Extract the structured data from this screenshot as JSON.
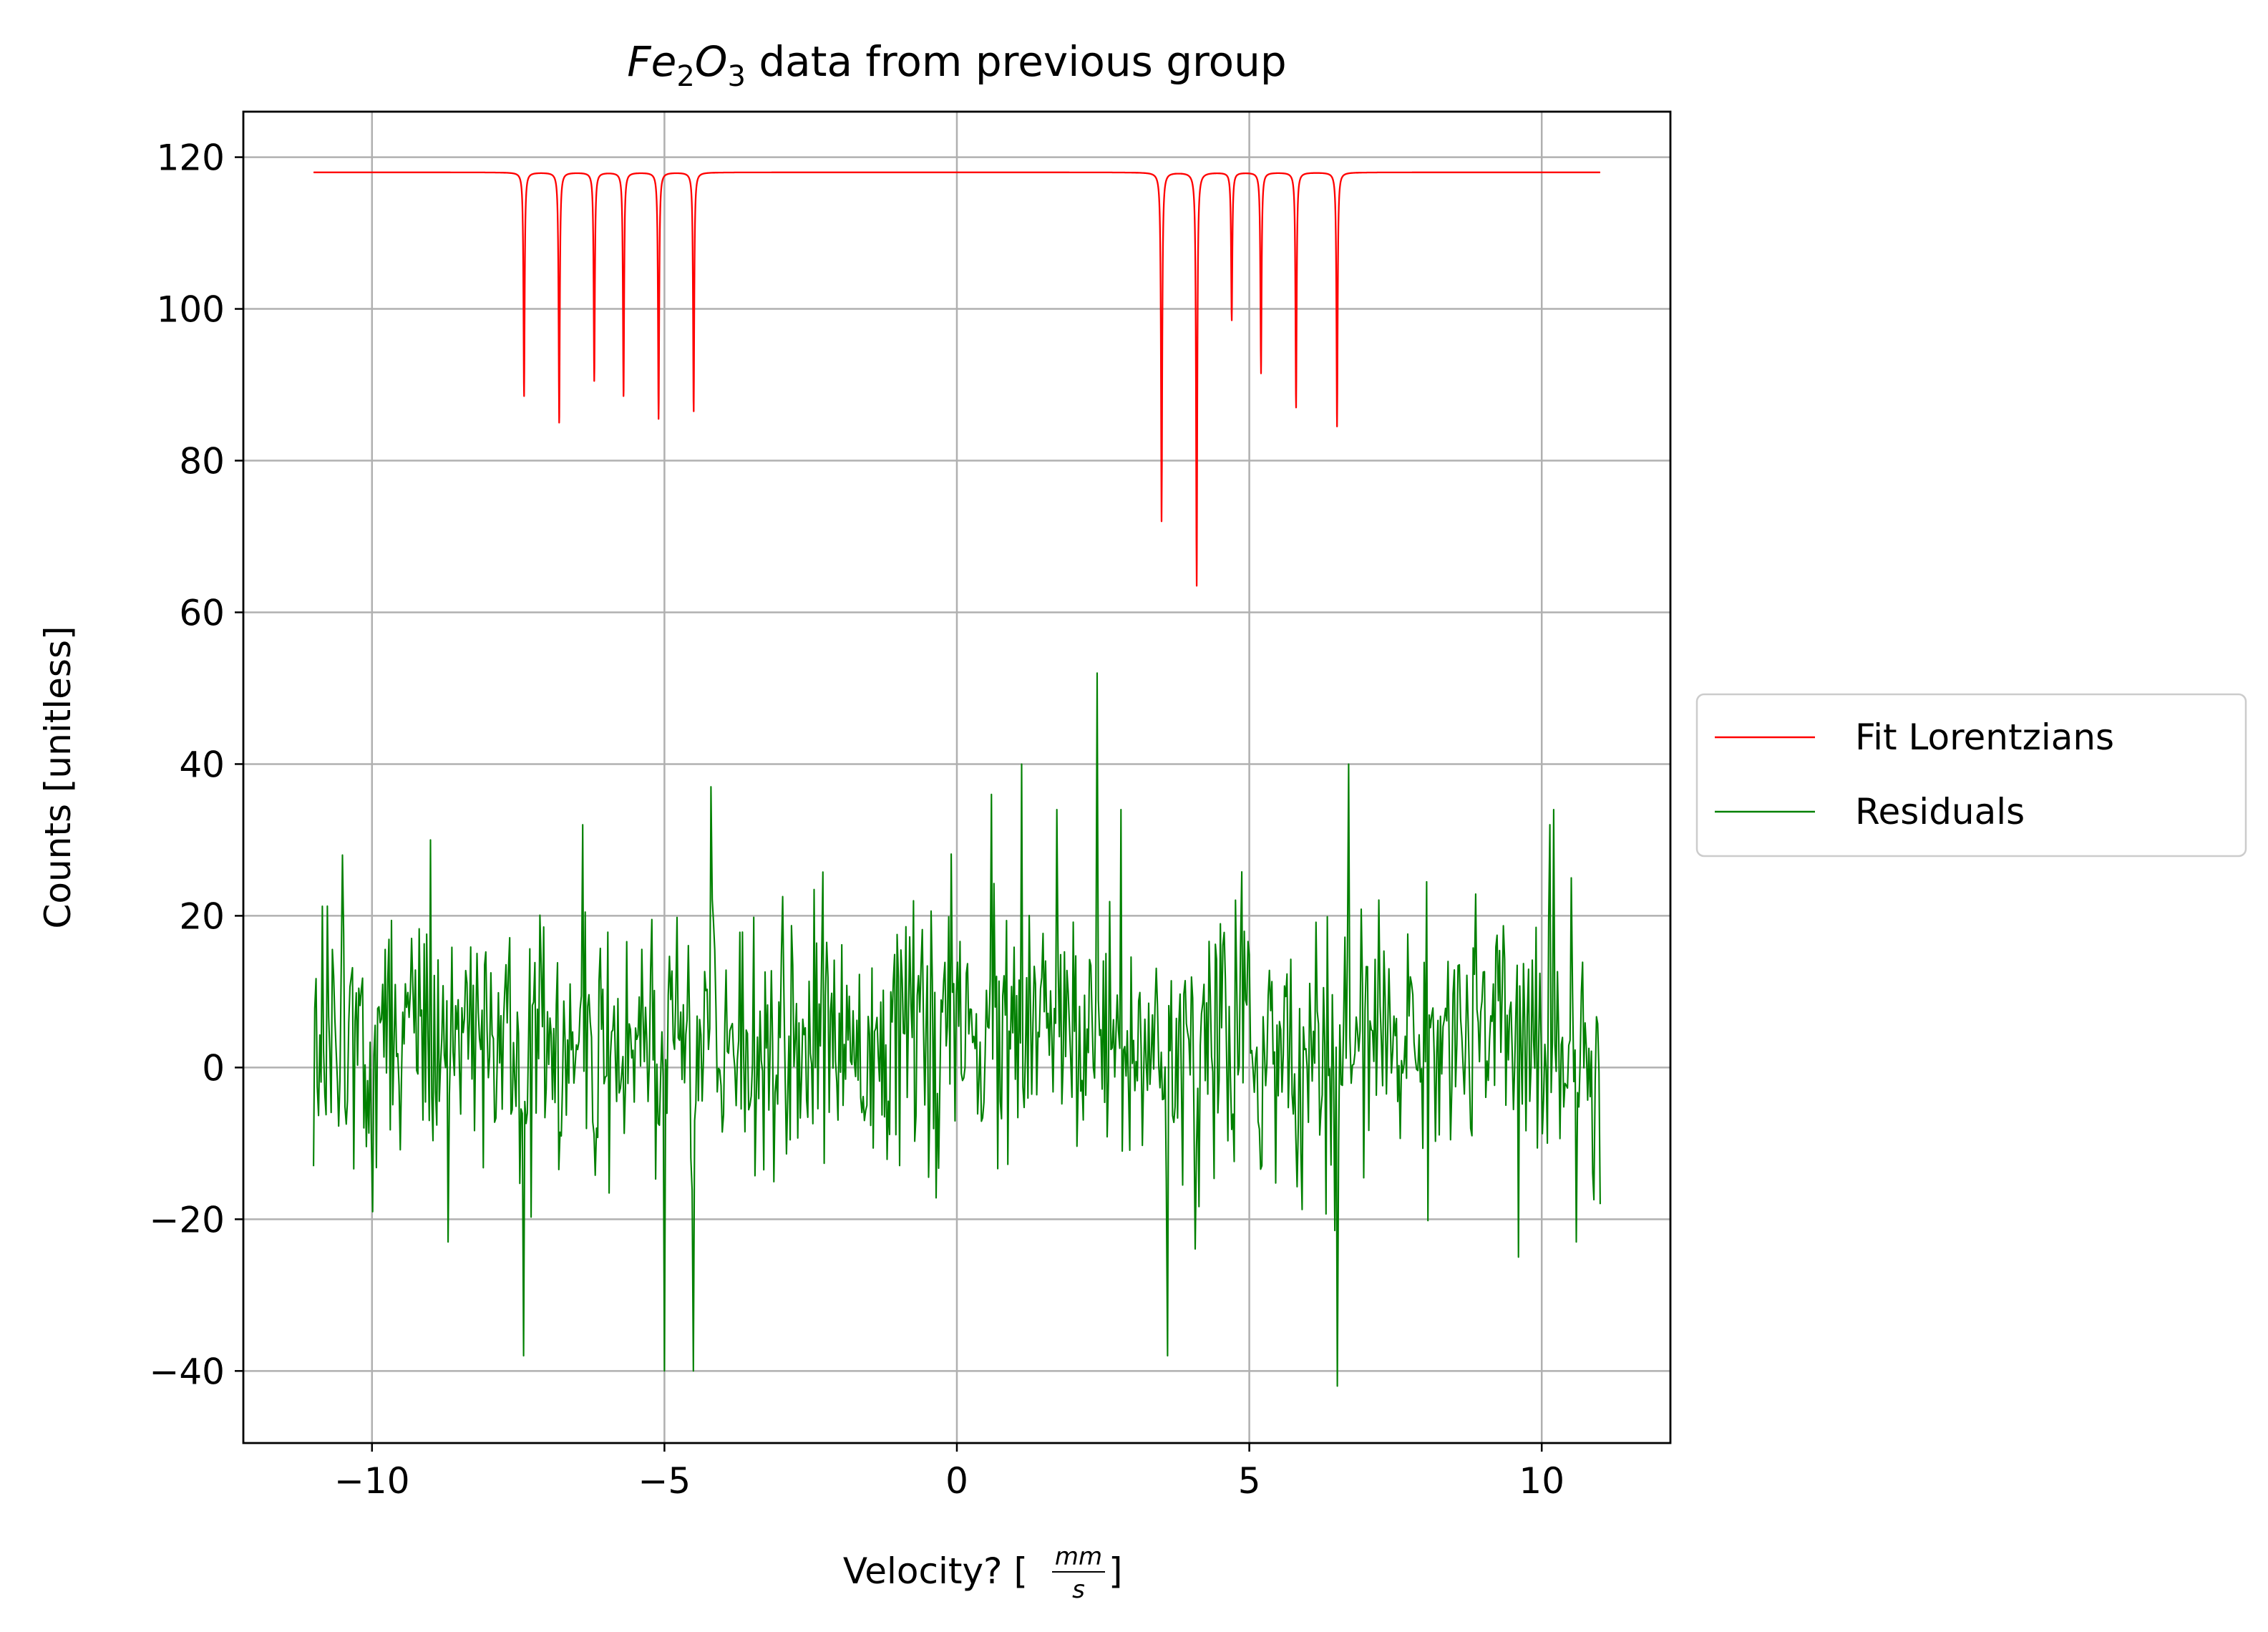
{
  "chart_data": {
    "type": "line",
    "title": {
      "main": "Fe",
      "sub1": "2",
      "mid": "O",
      "sub2": "3",
      "rest": " data from previous group"
    },
    "xlabel": {
      "prefix": "Velocity? [",
      "num": "mm",
      "den": "s",
      "suffix": "]"
    },
    "ylabel": "Counts [unitless]",
    "xlim": [
      -12.2,
      12.2
    ],
    "ylim": [
      -49.5,
      126
    ],
    "x_range": [
      -11,
      11
    ],
    "xticks": [
      {
        "value": -10,
        "label": "−10"
      },
      {
        "value": -5,
        "label": "−5"
      },
      {
        "value": 0,
        "label": "0"
      },
      {
        "value": 5,
        "label": "5"
      },
      {
        "value": 10,
        "label": "10"
      }
    ],
    "yticks": [
      {
        "value": -40,
        "label": "−40"
      },
      {
        "value": -20,
        "label": "−20"
      },
      {
        "value": 0,
        "label": "0"
      },
      {
        "value": 20,
        "label": "20"
      },
      {
        "value": 40,
        "label": "40"
      },
      {
        "value": 60,
        "label": "60"
      },
      {
        "value": 80,
        "label": "80"
      },
      {
        "value": 100,
        "label": "100"
      },
      {
        "value": 120,
        "label": "120"
      }
    ],
    "grid": true,
    "legend_position": "right, outside plot",
    "series": [
      {
        "name": "Fit Lorentzians",
        "color": "#ff0000",
        "baseline": 118,
        "dips": [
          {
            "x": -7.4,
            "min": 88.5
          },
          {
            "x": -6.8,
            "min": 85
          },
          {
            "x": -6.2,
            "min": 90.5
          },
          {
            "x": -5.7,
            "min": 88.5
          },
          {
            "x": -5.1,
            "min": 85.5
          },
          {
            "x": -4.5,
            "min": 86.5
          },
          {
            "x": 3.5,
            "min": 72
          },
          {
            "x": 4.1,
            "min": 63.5
          },
          {
            "x": 4.7,
            "min": 98.5
          },
          {
            "x": 5.2,
            "min": 91.5
          },
          {
            "x": 5.8,
            "min": 87
          },
          {
            "x": 6.5,
            "min": 84.5
          }
        ]
      },
      {
        "name": "Residuals",
        "color": "#008000",
        "points": 1024,
        "mean": 4,
        "spread": 8,
        "dips": [
          -7.4,
          -6.8,
          -6.2,
          -5.7,
          -5.1,
          -4.5,
          3.5,
          4.1,
          4.7,
          5.2,
          5.8,
          6.5
        ],
        "extremes": [
          {
            "x": 2.4,
            "y": 52
          },
          {
            "x": 6.7,
            "y": 40
          },
          {
            "x": 1.1,
            "y": 40
          },
          {
            "x": -4.5,
            "y": -40
          },
          {
            "x": -5.0,
            "y": -40
          },
          {
            "x": 6.5,
            "y": -42
          },
          {
            "x": -7.4,
            "y": -38
          },
          {
            "x": 3.6,
            "y": -38
          },
          {
            "x": -6.4,
            "y": 32
          },
          {
            "x": -9.0,
            "y": 30
          },
          {
            "x": -10.5,
            "y": 28
          },
          {
            "x": -4.2,
            "y": 37
          },
          {
            "x": 0.6,
            "y": 36
          },
          {
            "x": 1.7,
            "y": 34
          },
          {
            "x": 2.8,
            "y": 34
          },
          {
            "x": 10.2,
            "y": 34
          },
          {
            "x": 10.5,
            "y": 25
          },
          {
            "x": 11.0,
            "y": 25
          },
          {
            "x": -10.0,
            "y": -19
          },
          {
            "x": 9.6,
            "y": -25
          },
          {
            "x": 10.6,
            "y": -23
          },
          {
            "x": -8.7,
            "y": -23
          },
          {
            "x": 11.0,
            "y": -18
          },
          {
            "x": -11.0,
            "y": -13
          }
        ]
      }
    ]
  }
}
